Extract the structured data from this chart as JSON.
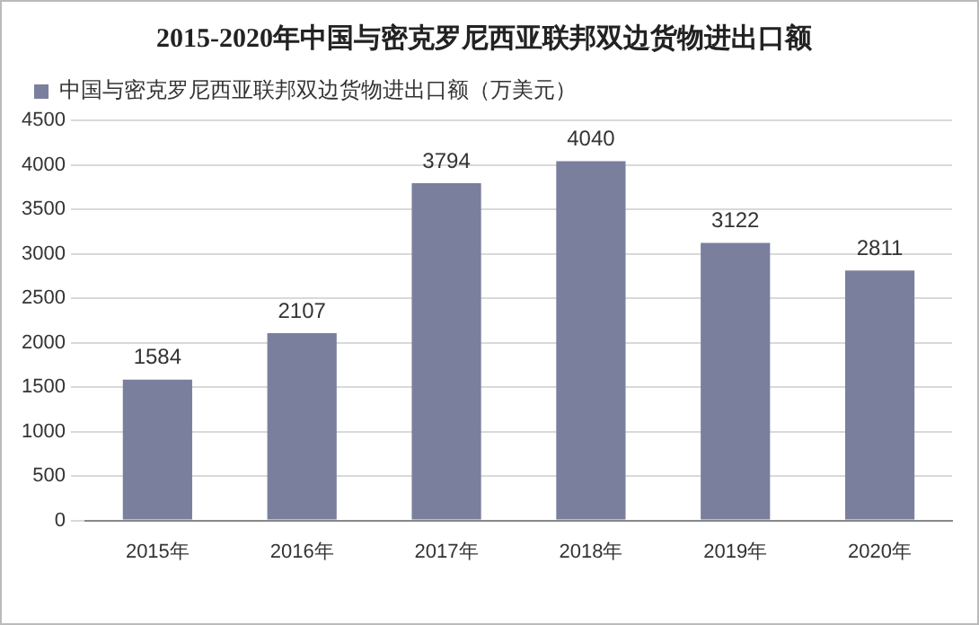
{
  "chart_data": {
    "type": "bar",
    "title": "2015-2020年中国与密克罗尼西亚联邦双边货物进出口额",
    "categories": [
      "2015年",
      "2016年",
      "2017年",
      "2018年",
      "2019年",
      "2020年"
    ],
    "series": [
      {
        "name": "中国与密克罗尼西亚联邦双边货物进出口额（万美元）",
        "color": "#7b7f9e",
        "values": [
          1584,
          2107,
          3794,
          4040,
          3122,
          2811
        ]
      }
    ],
    "ylim": [
      0,
      4500
    ],
    "yticks": [
      0,
      500,
      1000,
      1500,
      2000,
      2500,
      3000,
      3500,
      4000,
      4500
    ],
    "grid": "y",
    "legend": "top left",
    "data_labels": true
  }
}
